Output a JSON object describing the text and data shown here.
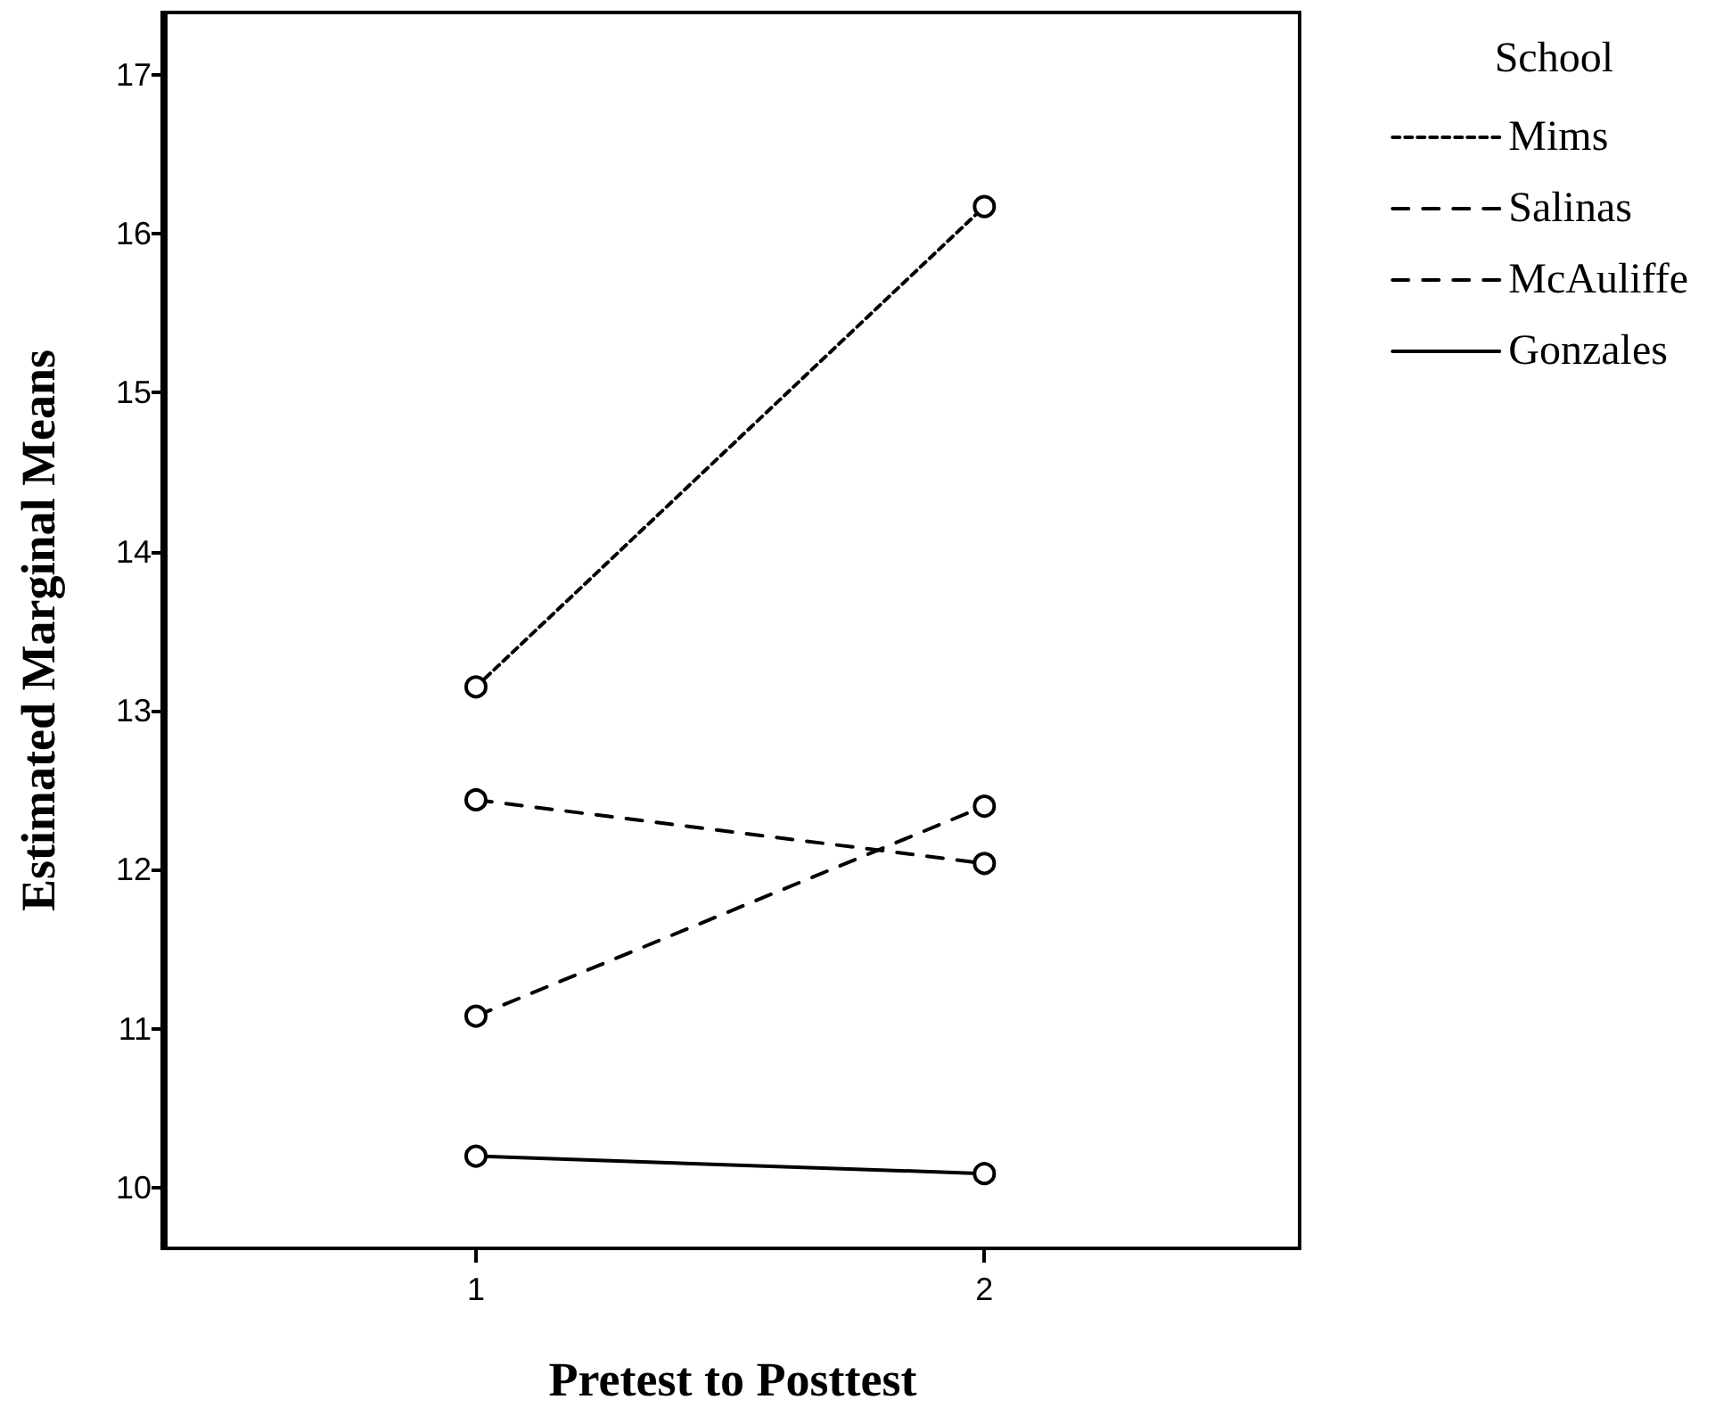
{
  "chart_data": {
    "type": "line",
    "xlabel": "Pretest to Posttest",
    "ylabel": "Estimated Marginal Means",
    "legend_title": "School",
    "x": [
      1,
      2
    ],
    "xlim": [
      0.39,
      2.62
    ],
    "xticks": [
      1,
      2
    ],
    "ylim": [
      9.62,
      17.39
    ],
    "yticks": [
      10,
      11,
      12,
      13,
      14,
      15,
      16,
      17
    ],
    "marker": "circle",
    "legend": "top right",
    "grid": false,
    "series": [
      {
        "name": "Mims",
        "color": "#000000",
        "line_style": "dotted",
        "values": [
          13.15,
          16.17
        ]
      },
      {
        "name": "Salinas",
        "color": "#000000",
        "line_style": "dashed",
        "values": [
          11.08,
          12.4
        ]
      },
      {
        "name": "McAuliffe",
        "color": "#000000",
        "line_style": "dashed",
        "values": [
          12.44,
          12.04
        ]
      },
      {
        "name": "Gonzales",
        "color": "#000000",
        "line_style": "solid",
        "values": [
          10.2,
          10.09
        ]
      }
    ]
  }
}
